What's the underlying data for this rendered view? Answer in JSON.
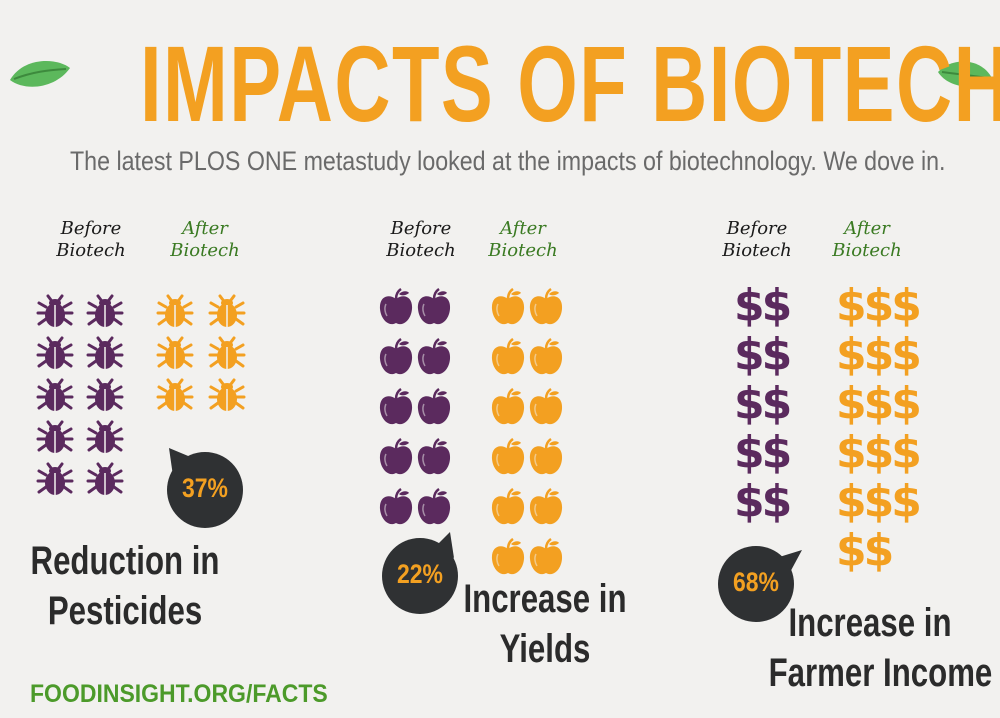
{
  "title": "IMPACTS OF BIOTECH",
  "subtitle": "The latest PLOS ONE metastudy looked at the impacts of biotechnology. We dove in.",
  "colors": {
    "orange": "#f3a021",
    "purple": "#5b2a5e",
    "dark_bubble": "#2f3133",
    "green": "#4c9a2a",
    "leaf": "#5cb85c"
  },
  "sections": [
    {
      "before_label": "Before\nBiotech",
      "after_label": "After\nBiotech",
      "icon": "bug-icon",
      "before_count": 10,
      "after_count": 6,
      "percent": "37%",
      "description_line1": "Reduction in",
      "description_line2": "Pesticides"
    },
    {
      "before_label": "Before\nBiotech",
      "after_label": "After\nBiotech",
      "icon": "apple-icon",
      "before_count": 10,
      "after_count": 12,
      "percent": "22%",
      "description_line1": "Increase in",
      "description_line2": "Yields"
    },
    {
      "before_label": "Before\nBiotech",
      "after_label": "After\nBiotech",
      "icon": "dollar-icon",
      "before_count": 10,
      "after_count": 17,
      "percent": "68%",
      "description_line1": "Increase in",
      "description_line2": "Farmer Income"
    }
  ],
  "footer": "FOODINSIGHT.ORG/FACTS"
}
